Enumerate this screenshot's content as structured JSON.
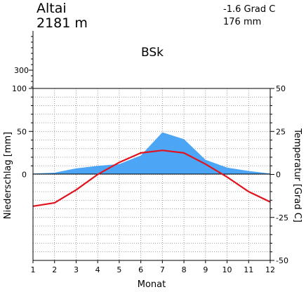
{
  "station": {
    "name": "Altai",
    "elevation": "2181 m"
  },
  "summary": {
    "mean_temp": "-1.6 Grad C",
    "annual_precip": "176 mm"
  },
  "climate_class": "BSk",
  "colors": {
    "precip_fill": "#4da6f5",
    "temp_line": "#e0141e",
    "grid": "#888888",
    "axis": "#000000"
  },
  "chart_data": {
    "type": "area",
    "title": "",
    "xlabel": "Monat",
    "ylabel_left": "Niederschlag [mm]",
    "ylabel_right": "Temperatur [Grad C]",
    "x": [
      1,
      2,
      3,
      4,
      5,
      6,
      7,
      8,
      9,
      10,
      11,
      12
    ],
    "x_tick_labels": [
      "1",
      "2",
      "3",
      "4",
      "5",
      "6",
      "7",
      "8",
      "9",
      "10",
      "11",
      "12"
    ],
    "xlim": [
      1,
      12
    ],
    "left_axis": {
      "ylim": [
        -100,
        100
      ],
      "tick_labels": [
        "100",
        "50",
        "0"
      ],
      "tick_values": [
        100,
        50,
        0
      ],
      "upper_tick_label": "300"
    },
    "right_axis": {
      "ylim": [
        -50,
        50
      ],
      "tick_labels": [
        "50",
        "25",
        "0",
        "-25",
        "-50"
      ],
      "tick_values": [
        50,
        25,
        0,
        -25,
        -50
      ]
    },
    "grid": true,
    "series": [
      {
        "name": "Niederschlag",
        "kind": "area",
        "axis": "left",
        "values": [
          1,
          2,
          7,
          10,
          12,
          22,
          49,
          41,
          17,
          8,
          4,
          1
        ]
      },
      {
        "name": "Temperatur",
        "kind": "line",
        "axis": "right",
        "values": [
          -18.5,
          -16.5,
          -9,
          0,
          7,
          12.5,
          14,
          12.5,
          6,
          -1.5,
          -10,
          -16
        ]
      }
    ]
  }
}
